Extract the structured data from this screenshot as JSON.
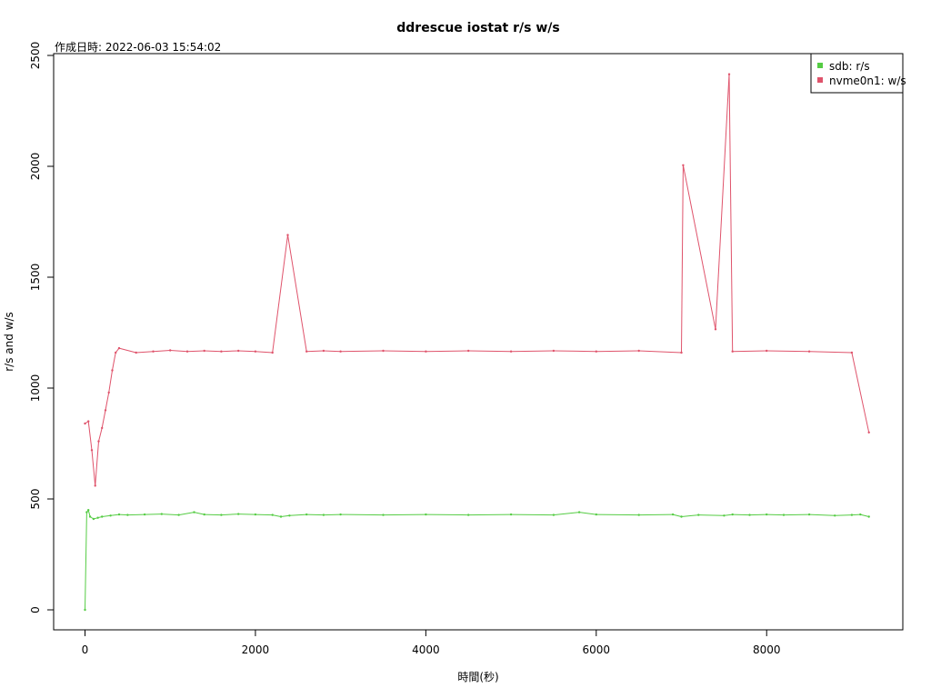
{
  "chart_data": {
    "type": "line",
    "title": "ddrescue iostat r/s w/s",
    "subtitle": "作成日時: 2022-06-03 15:54:02",
    "xlabel": "時間(秒)",
    "ylabel": "r/s and w/s",
    "xlim": [
      0,
      9230
    ],
    "ylim": [
      0,
      2500
    ],
    "x_ticks": [
      "0",
      "2000",
      "4000",
      "6000",
      "8000"
    ],
    "y_ticks": [
      "0",
      "500",
      "1000",
      "1500",
      "2000",
      "2500"
    ],
    "legend_position": "top-right",
    "grid": false,
    "series": [
      {
        "name": "sdb: r/s",
        "color": "#55cc44",
        "x": [
          0,
          20,
          40,
          60,
          100,
          150,
          200,
          300,
          400,
          500,
          700,
          900,
          1100,
          1280,
          1400,
          1600,
          1800,
          2000,
          2200,
          2300,
          2400,
          2600,
          2800,
          3000,
          3500,
          4000,
          4500,
          5000,
          5500,
          5800,
          6000,
          6500,
          6900,
          7000,
          7200,
          7500,
          7600,
          7800,
          8000,
          8200,
          8500,
          8800,
          9000,
          9100,
          9200
        ],
        "values": [
          0,
          440,
          450,
          420,
          410,
          415,
          420,
          425,
          430,
          428,
          430,
          432,
          428,
          440,
          430,
          428,
          432,
          430,
          428,
          420,
          425,
          430,
          428,
          430,
          428,
          430,
          428,
          430,
          428,
          440,
          430,
          428,
          430,
          420,
          428,
          425,
          430,
          428,
          430,
          428,
          430,
          425,
          428,
          430,
          420
        ]
      },
      {
        "name": "nvme0n1: w/s",
        "color": "#df536b",
        "x": [
          0,
          40,
          80,
          120,
          160,
          200,
          240,
          280,
          320,
          360,
          400,
          600,
          800,
          1000,
          1200,
          1400,
          1600,
          1800,
          2000,
          2200,
          2380,
          2600,
          2800,
          3000,
          3500,
          4000,
          4500,
          5000,
          5500,
          6000,
          6500,
          7000,
          7020,
          7400,
          7560,
          7600,
          8000,
          8500,
          9000,
          9200
        ],
        "values": [
          840,
          850,
          720,
          560,
          760,
          820,
          900,
          980,
          1080,
          1160,
          1180,
          1160,
          1165,
          1170,
          1165,
          1168,
          1165,
          1168,
          1165,
          1160,
          1690,
          1165,
          1168,
          1165,
          1168,
          1165,
          1168,
          1165,
          1168,
          1165,
          1168,
          1160,
          2005,
          1265,
          2415,
          1165,
          1168,
          1165,
          1160,
          800
        ]
      }
    ]
  }
}
